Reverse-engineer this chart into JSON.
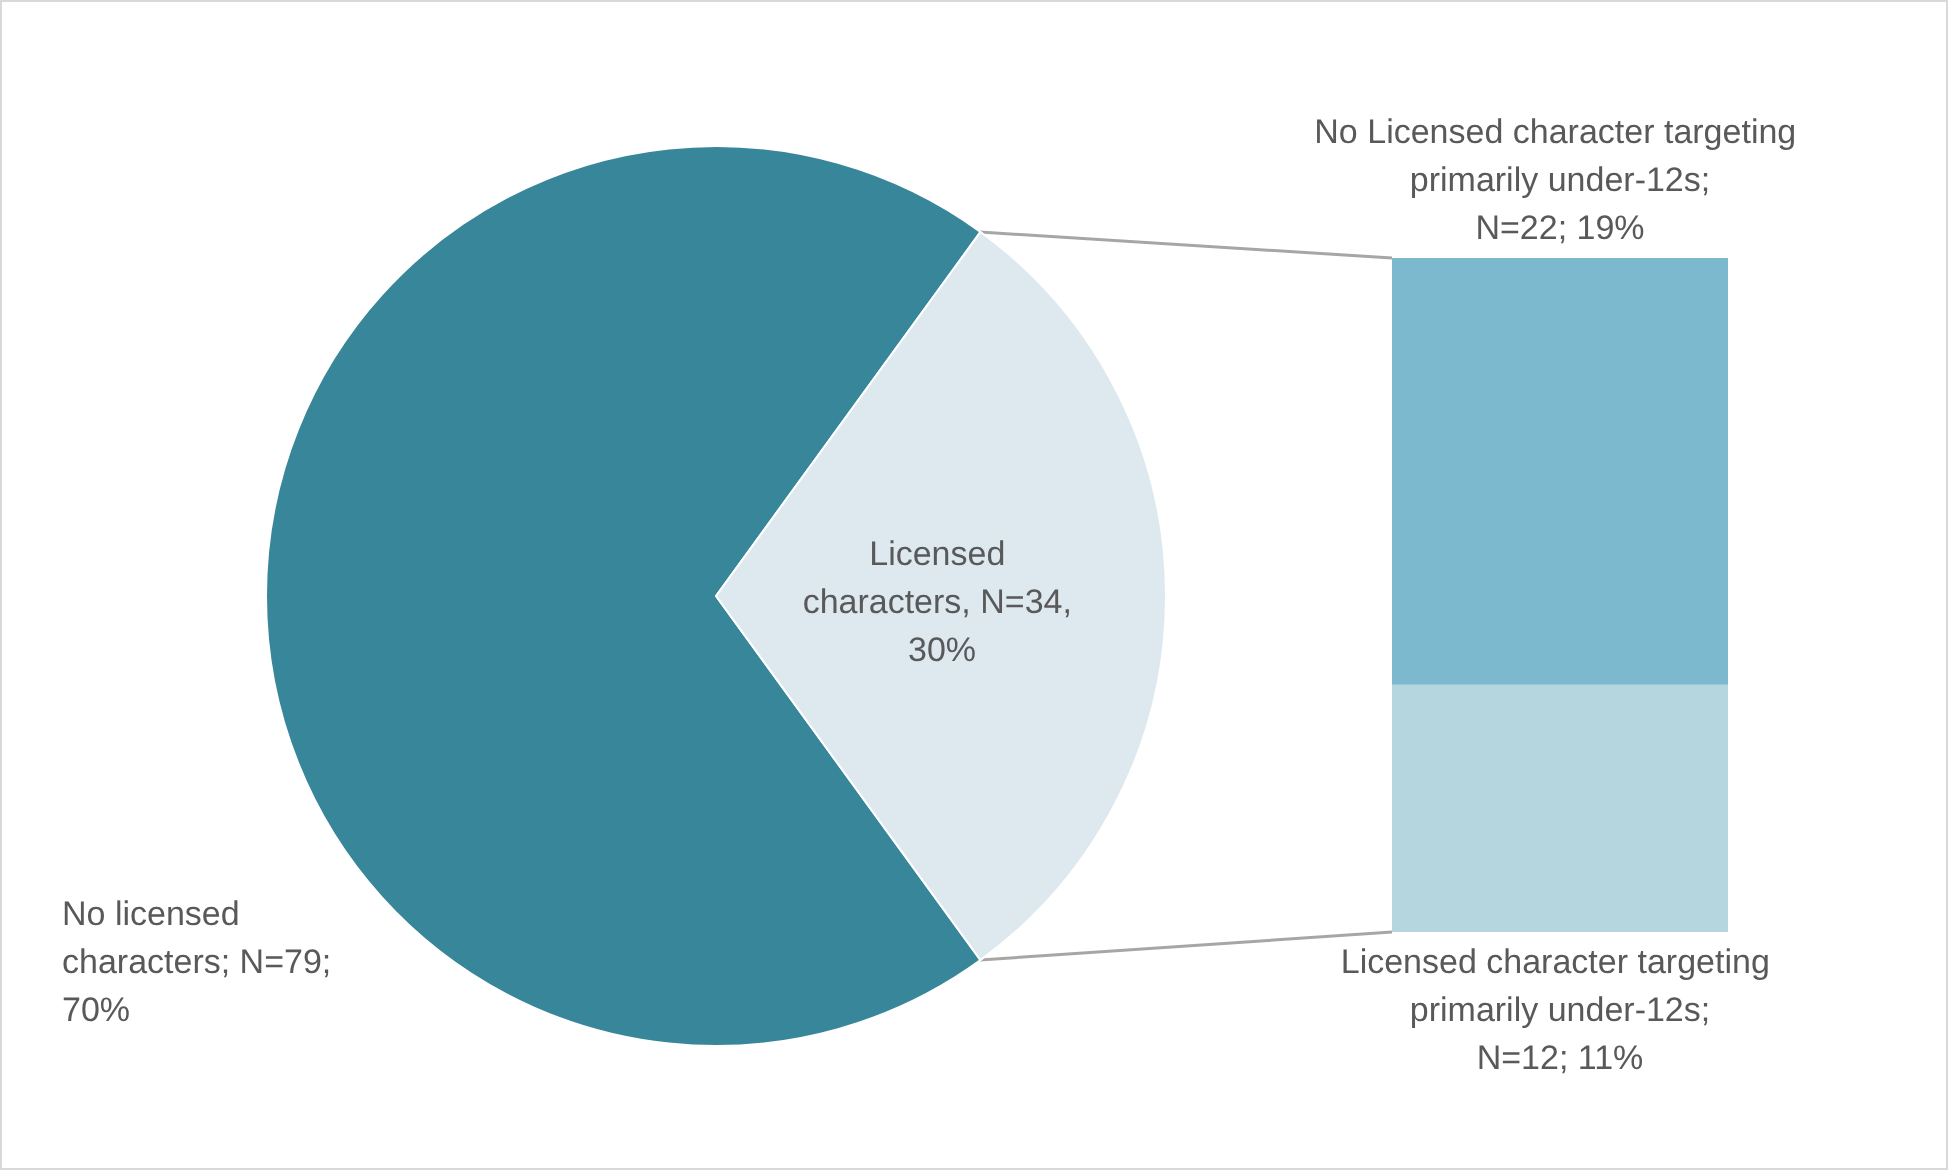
{
  "chart_data": [
    {
      "type": "pie",
      "categories": [
        "No licensed characters; N=79; 70%",
        "Licensed characters, N=34, 30%"
      ],
      "values": [
        70,
        30
      ],
      "colors": [
        "#38869a",
        "#dde9ef"
      ],
      "legend": false
    },
    {
      "type": "bar",
      "stacked": true,
      "categories": [
        null
      ],
      "legend": false,
      "series": [
        {
          "name": "Licensed character targeting primarily under-12s;",
          "color": "#b6d6df",
          "values": [
            11
          ],
          "value_labels": [
            "N=12; 11%"
          ]
        },
        {
          "name": "No Licensed character targeting primarily under-12s;",
          "color": "#7cb9ce",
          "values": [
            19
          ],
          "value_labels": [
            "N=22; 19%"
          ]
        }
      ]
    }
  ]
}
